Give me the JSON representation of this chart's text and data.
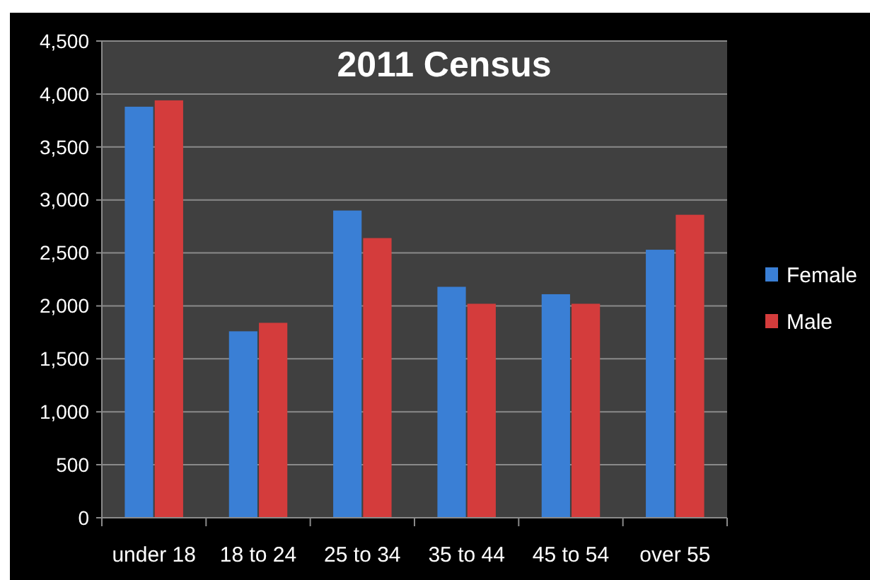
{
  "chart_data": {
    "type": "bar",
    "title": "2011 Census",
    "categories": [
      "under 18",
      "18 to 24",
      "25 to 34",
      "35 to 44",
      "45 to 54",
      "over 55"
    ],
    "series": [
      {
        "name": "Female",
        "color": "#3a7fd5",
        "values": [
          3880,
          1760,
          2900,
          2180,
          2110,
          2530
        ]
      },
      {
        "name": "Male",
        "color": "#d43c3c",
        "values": [
          3940,
          1840,
          2640,
          2020,
          2020,
          2860
        ]
      }
    ],
    "ylim": [
      0,
      4500
    ],
    "yticks": [
      0,
      500,
      {
        "value": 1000,
        "label": "1,000"
      },
      {
        "value": 1500,
        "label": "1,500"
      },
      {
        "value": 2000,
        "label": "2,000"
      },
      {
        "value": 2500,
        "label": "2,500"
      },
      {
        "value": 3000,
        "label": "3,000"
      },
      {
        "value": 3500,
        "label": "3,500"
      },
      {
        "value": 4000,
        "label": "4,000"
      },
      {
        "value": 4500,
        "label": "4,500"
      }
    ],
    "grid": "y",
    "legend": "right"
  }
}
